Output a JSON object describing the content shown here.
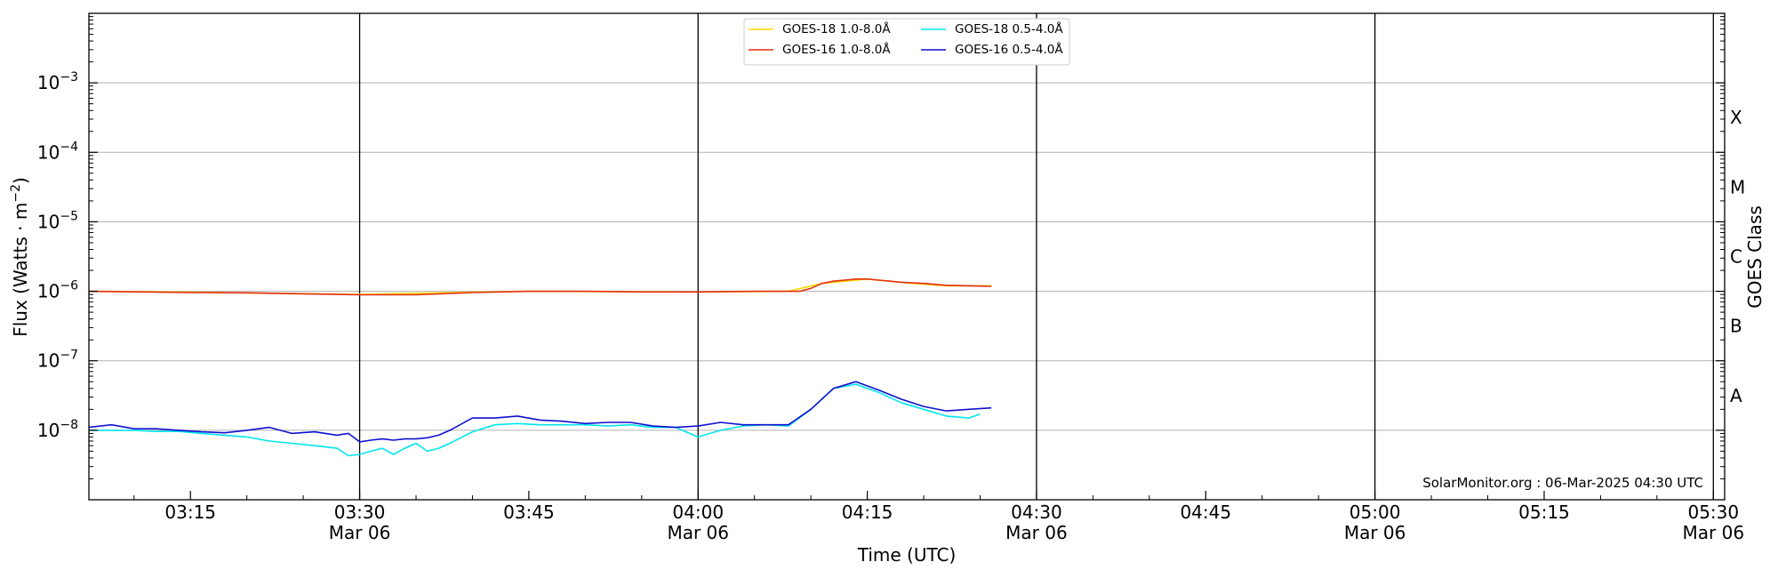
{
  "chart_data": {
    "type": "line",
    "xlabel": "Time (UTC)",
    "ylabel_prefix": "Flux (Watts · m",
    "ylabel_sup": "−2",
    "ylabel_suffix": ")",
    "right_label": "GOES Class",
    "credit": "SolarMonitor.org : 06-Mar-2025 04:30 UTC",
    "y_scale": "log",
    "ylim": [
      1e-09,
      0.01
    ],
    "xlim": [
      "03:06",
      "05:31"
    ],
    "grid": "horizontal",
    "legend_position": "top-center",
    "x_ticks": [
      {
        "time": "03:15",
        "label": "03:15",
        "sub": ""
      },
      {
        "time": "03:30",
        "label": "03:30",
        "sub": "Mar 06"
      },
      {
        "time": "03:45",
        "label": "03:45",
        "sub": ""
      },
      {
        "time": "04:00",
        "label": "04:00",
        "sub": "Mar 06"
      },
      {
        "time": "04:15",
        "label": "04:15",
        "sub": ""
      },
      {
        "time": "04:30",
        "label": "04:30",
        "sub": "Mar 06"
      },
      {
        "time": "04:45",
        "label": "04:45",
        "sub": ""
      },
      {
        "time": "05:00",
        "label": "05:00",
        "sub": "Mar 06"
      },
      {
        "time": "05:15",
        "label": "05:15",
        "sub": ""
      },
      {
        "time": "05:30",
        "label": "05:30",
        "sub": "Mar 06"
      }
    ],
    "y_ticks": [
      {
        "exp": -8,
        "base": "10",
        "sup": "−8"
      },
      {
        "exp": -7,
        "base": "10",
        "sup": "−7"
      },
      {
        "exp": -6,
        "base": "10",
        "sup": "−6"
      },
      {
        "exp": -5,
        "base": "10",
        "sup": "−5"
      },
      {
        "exp": -4,
        "base": "10",
        "sup": "−4"
      },
      {
        "exp": -3,
        "base": "10",
        "sup": "−3"
      }
    ],
    "day_lines": [
      "03:30",
      "04:00",
      "04:30",
      "05:00",
      "05:30"
    ],
    "goes_classes": [
      {
        "label": "A",
        "exp": -7.5
      },
      {
        "label": "B",
        "exp": -6.5
      },
      {
        "label": "C",
        "exp": -5.5
      },
      {
        "label": "M",
        "exp": -4.5
      },
      {
        "label": "X",
        "exp": -3.5
      }
    ],
    "series": [
      {
        "name": "GOES-18 1.0-8.0Å",
        "color": "#ffd700",
        "x": [
          "03:06",
          "03:15",
          "03:30",
          "03:40",
          "03:45",
          "04:00",
          "04:08",
          "04:11",
          "04:15",
          "04:19",
          "04:22",
          "04:26"
        ],
        "y": [
          1e-06,
          9.7e-07,
          9e-07,
          9.7e-07,
          1e-06,
          9.8e-07,
          1e-06,
          1.3e-06,
          1.5e-06,
          1.3e-06,
          1.2e-06,
          1.2e-06
        ]
      },
      {
        "name": "GOES-16 1.0-8.0Å",
        "color": "#e03010",
        "x": [
          "03:06",
          "03:15",
          "03:20",
          "03:25",
          "03:30",
          "03:35",
          "03:40",
          "03:45",
          "03:50",
          "03:55",
          "04:00",
          "04:05",
          "04:09",
          "04:10",
          "04:11",
          "04:12",
          "04:13",
          "04:14",
          "04:15",
          "04:16",
          "04:17",
          "04:18",
          "04:20",
          "04:22",
          "04:24",
          "04:26"
        ],
        "y": [
          1e-06,
          9.6e-07,
          9.5e-07,
          9.2e-07,
          8.9e-07,
          8.9e-07,
          9.6e-07,
          1e-06,
          1e-06,
          9.8e-07,
          9.8e-07,
          1e-06,
          1e-06,
          1.1e-06,
          1.3e-06,
          1.4e-06,
          1.45e-06,
          1.5e-06,
          1.5e-06,
          1.45e-06,
          1.4e-06,
          1.35e-06,
          1.3e-06,
          1.22e-06,
          1.2e-06,
          1.18e-06
        ]
      },
      {
        "name": "GOES-18 0.5-4.0Å",
        "color": "#00e5ee",
        "x": [
          "03:06",
          "03:08",
          "03:10",
          "03:12",
          "03:14",
          "03:16",
          "03:18",
          "03:20",
          "03:22",
          "03:24",
          "03:26",
          "03:28",
          "03:29",
          "03:30",
          "03:31",
          "03:32",
          "03:33",
          "03:34",
          "03:35",
          "03:36",
          "03:37",
          "03:38",
          "03:40",
          "03:42",
          "03:44",
          "03:46",
          "03:48",
          "03:50",
          "03:52",
          "03:54",
          "03:56",
          "03:58",
          "04:00",
          "04:02",
          "04:04",
          "04:06",
          "04:08",
          "04:10",
          "04:12",
          "04:14",
          "04:16",
          "04:18",
          "04:20",
          "04:22",
          "04:24",
          "04:25"
        ],
        "y": [
          1e-08,
          1e-08,
          1e-08,
          9.6e-09,
          9.6e-09,
          9e-09,
          8.5e-09,
          8e-09,
          7e-09,
          6.5e-09,
          6e-09,
          5.5e-09,
          4.3e-09,
          4.5e-09,
          5e-09,
          5.5e-09,
          4.5e-09,
          5.5e-09,
          6.5e-09,
          5e-09,
          5.5e-09,
          6.5e-09,
          9.5e-09,
          1.2e-08,
          1.25e-08,
          1.2e-08,
          1.2e-08,
          1.2e-08,
          1.15e-08,
          1.2e-08,
          1.1e-08,
          1.1e-08,
          8e-09,
          1e-08,
          1.15e-08,
          1.2e-08,
          1.15e-08,
          2e-08,
          4e-08,
          4.6e-08,
          3.5e-08,
          2.5e-08,
          2e-08,
          1.6e-08,
          1.5e-08,
          1.7e-08
        ]
      },
      {
        "name": "GOES-16 0.5-4.0Å",
        "color": "#1010d0",
        "x": [
          "03:06",
          "03:08",
          "03:10",
          "03:12",
          "03:14",
          "03:16",
          "03:18",
          "03:20",
          "03:22",
          "03:24",
          "03:26",
          "03:28",
          "03:29",
          "03:30",
          "03:31",
          "03:32",
          "03:33",
          "03:34",
          "03:35",
          "03:36",
          "03:37",
          "03:38",
          "03:40",
          "03:42",
          "03:44",
          "03:46",
          "03:48",
          "03:50",
          "03:52",
          "03:54",
          "03:56",
          "03:58",
          "04:00",
          "04:02",
          "04:04",
          "04:06",
          "04:08",
          "04:10",
          "04:12",
          "04:14",
          "04:16",
          "04:18",
          "04:20",
          "04:22",
          "04:24",
          "04:26"
        ],
        "y": [
          1.1e-08,
          1.2e-08,
          1.05e-08,
          1.05e-08,
          1e-08,
          9.5e-09,
          9.2e-09,
          1e-08,
          1.1e-08,
          9e-09,
          9.5e-09,
          8.5e-09,
          9e-09,
          6.8e-09,
          7.2e-09,
          7.5e-09,
          7.2e-09,
          7.5e-09,
          7.5e-09,
          7.8e-09,
          8.5e-09,
          1e-08,
          1.5e-08,
          1.5e-08,
          1.6e-08,
          1.4e-08,
          1.35e-08,
          1.25e-08,
          1.3e-08,
          1.3e-08,
          1.15e-08,
          1.1e-08,
          1.15e-08,
          1.3e-08,
          1.2e-08,
          1.2e-08,
          1.2e-08,
          2e-08,
          4e-08,
          5e-08,
          3.8e-08,
          2.8e-08,
          2.2e-08,
          1.9e-08,
          2e-08,
          2.1e-08
        ]
      }
    ]
  }
}
